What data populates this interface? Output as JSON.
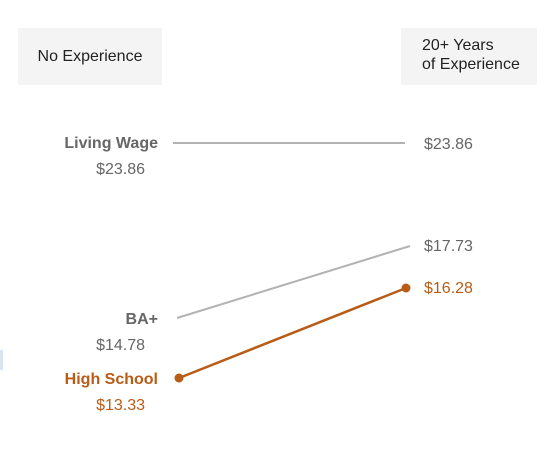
{
  "headers": {
    "left": "No Experience",
    "right_line1": "20+ Years",
    "right_line2": "of Experience"
  },
  "chart_data": {
    "type": "line",
    "x": [
      "No Experience",
      "20+ Years of Experience"
    ],
    "series": [
      {
        "name": "Living Wage",
        "values": [
          23.86,
          23.86
        ],
        "start_label": "$23.86",
        "end_label": "$23.86",
        "color": "#b3b3b3",
        "label_color": "#666666",
        "markers": false
      },
      {
        "name": "BA+",
        "values": [
          14.78,
          17.73
        ],
        "start_label": "$14.78",
        "end_label": "$17.73",
        "color": "#b3b3b3",
        "label_color": "#666666",
        "markers": false
      },
      {
        "name": "High School",
        "values": [
          13.33,
          16.28
        ],
        "start_label": "$13.33",
        "end_label": "$16.28",
        "color": "#b85c17",
        "label_color": "#b85c17",
        "markers": true
      }
    ],
    "grid": false,
    "legend": "none"
  }
}
